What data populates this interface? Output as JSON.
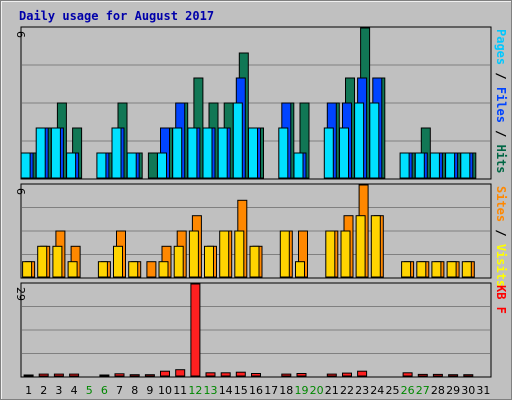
{
  "chart_data": {
    "type": "bar",
    "title": "Daily usage for August 2017",
    "categories": [
      "1",
      "2",
      "3",
      "4",
      "5",
      "6",
      "7",
      "8",
      "9",
      "10",
      "11",
      "12",
      "13",
      "14",
      "15",
      "16",
      "17",
      "18",
      "19",
      "20",
      "21",
      "22",
      "23",
      "24",
      "25",
      "26",
      "27",
      "28",
      "29",
      "30",
      "31"
    ],
    "weekend_days": [
      "5",
      "6",
      "12",
      "13",
      "19",
      "20",
      "26",
      "27"
    ],
    "panels": [
      {
        "name": "hits-panel",
        "ylim": [
          0,
          6
        ],
        "max_label": "6",
        "legend": [
          "Pages",
          "Files",
          "Hits"
        ],
        "legend_colors": [
          "#00c8ff",
          "#0044ff",
          "#006644"
        ],
        "series": [
          {
            "name": "Pages",
            "color": "#00e0ff",
            "values": [
              1,
              2,
              2,
              1,
              0,
              1,
              2,
              1,
              0,
              1,
              2,
              2,
              2,
              2,
              3,
              2,
              0,
              2,
              1,
              0,
              2,
              2,
              3,
              3,
              0,
              1,
              1,
              1,
              1,
              1,
              0
            ]
          },
          {
            "name": "Files",
            "color": "#0044ff",
            "values": [
              1,
              2,
              2,
              1,
              0,
              1,
              2,
              1,
              0,
              2,
              3,
              2,
              2,
              2,
              4,
              2,
              0,
              3,
              1,
              0,
              3,
              3,
              4,
              4,
              0,
              1,
              1,
              1,
              1,
              1,
              0
            ]
          },
          {
            "name": "Hits",
            "color": "#117755",
            "values": [
              1,
              2,
              3,
              2,
              0,
              1,
              3,
              1,
              1,
              2,
              3,
              4,
              3,
              3,
              5,
              2,
              0,
              3,
              3,
              0,
              3,
              4,
              6,
              4,
              0,
              1,
              2,
              1,
              1,
              1,
              0
            ]
          }
        ]
      },
      {
        "name": "visits-panel",
        "ylim": [
          0,
          6
        ],
        "max_label": "6",
        "legend": [
          "Sites",
          "Visits"
        ],
        "legend_colors": [
          "#ff8800",
          "#ffff00"
        ],
        "series": [
          {
            "name": "Sites",
            "color": "#ffd400",
            "values": [
              1,
              2,
              2,
              1,
              0,
              1,
              2,
              1,
              0,
              1,
              2,
              3,
              2,
              3,
              3,
              2,
              0,
              3,
              1,
              0,
              3,
              3,
              4,
              4,
              0,
              1,
              1,
              1,
              1,
              1,
              0
            ]
          },
          {
            "name": "Visits",
            "color": "#ff8800",
            "values": [
              1,
              2,
              3,
              2,
              0,
              1,
              3,
              1,
              1,
              2,
              3,
              4,
              2,
              3,
              5,
              2,
              0,
              3,
              3,
              0,
              3,
              4,
              6,
              4,
              0,
              1,
              1,
              1,
              1,
              1,
              0
            ]
          }
        ]
      },
      {
        "name": "kbytes-panel",
        "ylim": [
          0,
          29
        ],
        "max_label": "29",
        "legend": [
          "KB F"
        ],
        "legend_colors": [
          "#ff0000"
        ],
        "series": [
          {
            "name": "KB F",
            "color": "#ff2020",
            "values": [
              0.3,
              0.6,
              0.6,
              0.6,
              0,
              0.3,
              0.7,
              0.4,
              0.4,
              1.5,
              2,
              29,
              1,
              1,
              1.2,
              0.8,
              0,
              0.6,
              0.8,
              0,
              0.6,
              0.9,
              1.5,
              0,
              0,
              1,
              0.5,
              0.5,
              0.4,
              0.4,
              0
            ]
          }
        ]
      }
    ]
  }
}
